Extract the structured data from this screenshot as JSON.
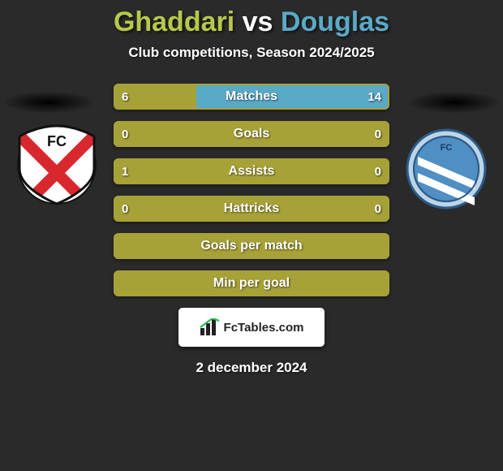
{
  "title": {
    "player1": "Ghaddari",
    "vs": "vs",
    "player2": "Douglas",
    "player1_color": "#b9c84a",
    "vs_color": "#ffffff",
    "player2_color": "#5aa9c7"
  },
  "subtitle": {
    "text": "Club competitions, Season 2024/2025",
    "color": "#ffffff"
  },
  "colors": {
    "left_fill": "#a7a238",
    "right_fill": "#5aa9c7",
    "border_color": "#a7a238",
    "text_color": "#ffffff",
    "background": "#2a2a2a"
  },
  "rows": [
    {
      "label": "Matches",
      "left": "6",
      "right": "14",
      "left_num": 6,
      "right_num": 14,
      "show_values": true
    },
    {
      "label": "Goals",
      "left": "0",
      "right": "0",
      "left_num": 0,
      "right_num": 0,
      "show_values": true
    },
    {
      "label": "Assists",
      "left": "1",
      "right": "0",
      "left_num": 1,
      "right_num": 0,
      "show_values": true
    },
    {
      "label": "Hattricks",
      "left": "0",
      "right": "0",
      "left_num": 0,
      "right_num": 0,
      "show_values": true
    },
    {
      "label": "Goals per match",
      "left": "",
      "right": "",
      "left_num": 0,
      "right_num": 0,
      "show_values": false
    },
    {
      "label": "Min per goal",
      "left": "",
      "right": "",
      "left_num": 0,
      "right_num": 0,
      "show_values": false
    }
  ],
  "club_left": {
    "name": "FC Utrecht",
    "bg": "#ffffff",
    "red": "#d9272e",
    "text": "FC"
  },
  "club_right": {
    "name": "FC Eindhoven",
    "bg": "#4f8fc4",
    "white": "#ffffff",
    "text": "FC"
  },
  "footer": {
    "brand": "FcTables.com",
    "date": "2 december 2024"
  }
}
